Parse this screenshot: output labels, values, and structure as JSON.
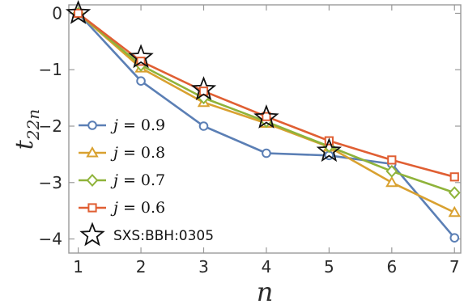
{
  "chart_data": {
    "type": "line",
    "x": [
      1,
      2,
      3,
      4,
      5,
      6,
      7
    ],
    "xlim": [
      0.85,
      7.1
    ],
    "ylim": [
      -4.25,
      0.15
    ],
    "xticks": [
      "1",
      "2",
      "3",
      "4",
      "5",
      "6",
      "7"
    ],
    "yticks": [
      "0",
      "−1",
      "−2",
      "−3",
      "−4"
    ],
    "xlabel": "n",
    "ylabel_main": "t",
    "ylabel_sub": "22n",
    "series": [
      {
        "name": "j = 0.9",
        "label_var": "j",
        "label_val": "= 0.9",
        "color": "#5b7fb5",
        "marker": "circle",
        "values": [
          0,
          -1.2,
          -2.0,
          -2.48,
          -2.52,
          -2.67,
          -3.98
        ]
      },
      {
        "name": "j = 0.8",
        "label_var": "j",
        "label_val": "= 0.8",
        "color": "#d9a130",
        "marker": "triangle",
        "values": [
          0,
          -0.97,
          -1.58,
          -1.95,
          -2.37,
          -3.0,
          -3.53
        ]
      },
      {
        "name": "j = 0.7",
        "label_var": "j",
        "label_val": "= 0.7",
        "color": "#8fb33a",
        "marker": "diamond",
        "values": [
          0,
          -0.92,
          -1.5,
          -1.92,
          -2.36,
          -2.8,
          -3.18
        ]
      },
      {
        "name": "j = 0.6",
        "label_var": "j",
        "label_val": "= 0.6",
        "color": "#e05f33",
        "marker": "square",
        "values": [
          0,
          -0.85,
          -1.38,
          -1.83,
          -2.26,
          -2.6,
          -2.9
        ]
      }
    ],
    "reference": {
      "name": "SXS:BBH:0305",
      "marker": "star",
      "x": [
        1,
        2,
        3,
        4,
        5
      ],
      "values": [
        0,
        -0.78,
        -1.35,
        -1.85,
        -2.44
      ]
    },
    "legend_position": "bottom-left",
    "grid": false
  }
}
